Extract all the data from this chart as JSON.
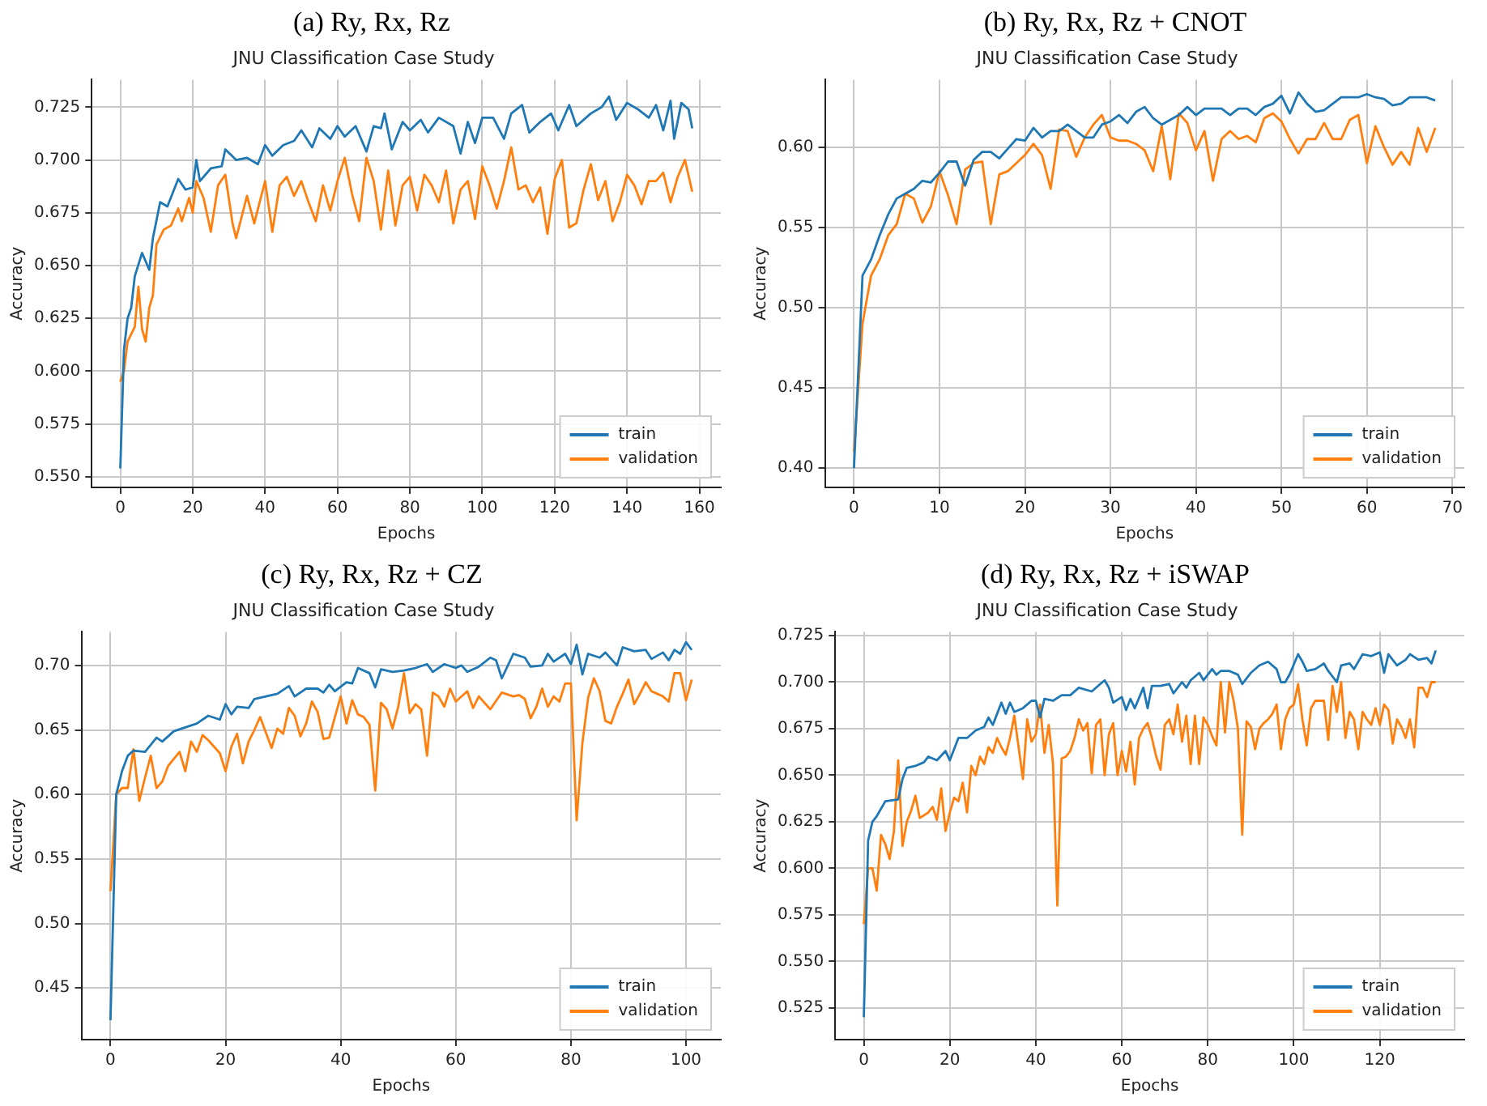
{
  "chart_data": [
    {
      "type": "line",
      "title": "JNU Classification Case Study",
      "annotations": [
        "(a) Ry, Rx, Rz"
      ],
      "xlabel": "Epochs",
      "ylabel": "Accuracy",
      "xlim": [
        -7.9,
        165.9
      ],
      "ylim": [
        0.545,
        0.738
      ],
      "xticks": [
        0,
        20,
        40,
        60,
        80,
        100,
        120,
        140,
        160
      ],
      "yticks": [
        {
          "value": 0.55,
          "label": "0.550"
        },
        {
          "value": 0.575,
          "label": "0.575"
        },
        {
          "value": 0.6,
          "label": "0.600"
        },
        {
          "value": 0.625,
          "label": "0.625"
        },
        {
          "value": 0.65,
          "label": "0.650"
        },
        {
          "value": 0.675,
          "label": "0.675"
        },
        {
          "value": 0.7,
          "label": "0.700"
        },
        {
          "value": 0.725,
          "label": "0.725"
        }
      ],
      "grid": true,
      "legend": "bottom right",
      "line_style": "solid",
      "series": [
        {
          "name": "train",
          "color": "#1f77b4",
          "x": [
            0,
            1,
            2,
            3,
            4,
            6,
            8,
            9,
            11,
            13,
            16,
            18,
            20,
            21,
            22,
            25,
            28,
            29,
            32,
            35,
            38,
            40,
            42,
            45,
            48,
            50,
            53,
            55,
            58,
            60,
            62,
            65,
            68,
            70,
            72,
            73,
            75,
            78,
            80,
            83,
            85,
            88,
            92,
            94,
            96,
            98,
            100,
            103,
            106,
            108,
            111,
            113,
            116,
            119,
            121,
            124,
            126,
            130,
            133,
            135,
            137,
            140,
            143,
            146,
            148,
            150,
            152,
            153,
            155,
            157,
            158
          ],
          "values": [
            0.554,
            0.61,
            0.625,
            0.63,
            0.645,
            0.656,
            0.648,
            0.663,
            0.68,
            0.678,
            0.691,
            0.686,
            0.687,
            0.7,
            0.69,
            0.696,
            0.697,
            0.705,
            0.7,
            0.701,
            0.698,
            0.707,
            0.702,
            0.707,
            0.709,
            0.714,
            0.706,
            0.715,
            0.71,
            0.716,
            0.711,
            0.716,
            0.704,
            0.716,
            0.715,
            0.722,
            0.705,
            0.718,
            0.714,
            0.719,
            0.713,
            0.72,
            0.716,
            0.703,
            0.718,
            0.708,
            0.72,
            0.72,
            0.71,
            0.722,
            0.726,
            0.713,
            0.718,
            0.722,
            0.714,
            0.726,
            0.716,
            0.722,
            0.725,
            0.73,
            0.719,
            0.727,
            0.724,
            0.72,
            0.726,
            0.714,
            0.728,
            0.71,
            0.727,
            0.724,
            0.715
          ]
        },
        {
          "name": "validation",
          "color": "#ff7f0e",
          "x": [
            0,
            1,
            2,
            4,
            5,
            6,
            7,
            8,
            9,
            10,
            12,
            14,
            16,
            17,
            19,
            20,
            21,
            23,
            25,
            27,
            29,
            31,
            32,
            35,
            37,
            40,
            42,
            44,
            46,
            48,
            50,
            52,
            54,
            56,
            58,
            60,
            62,
            64,
            66,
            68,
            70,
            72,
            74,
            76,
            78,
            80,
            82,
            84,
            86,
            88,
            90,
            92,
            94,
            96,
            98,
            100,
            102,
            104,
            106,
            108,
            110,
            112,
            114,
            116,
            118,
            120,
            122,
            124,
            126,
            128,
            130,
            132,
            134,
            136,
            138,
            140,
            142,
            144,
            146,
            148,
            150,
            152,
            154,
            156,
            158
          ],
          "values": [
            0.595,
            0.6,
            0.614,
            0.621,
            0.64,
            0.62,
            0.614,
            0.63,
            0.636,
            0.66,
            0.667,
            0.669,
            0.677,
            0.671,
            0.682,
            0.675,
            0.69,
            0.682,
            0.666,
            0.688,
            0.693,
            0.67,
            0.663,
            0.683,
            0.67,
            0.69,
            0.666,
            0.688,
            0.692,
            0.683,
            0.69,
            0.68,
            0.671,
            0.688,
            0.676,
            0.69,
            0.701,
            0.684,
            0.671,
            0.701,
            0.69,
            0.667,
            0.695,
            0.669,
            0.688,
            0.692,
            0.676,
            0.693,
            0.688,
            0.68,
            0.695,
            0.67,
            0.686,
            0.69,
            0.672,
            0.697,
            0.688,
            0.677,
            0.69,
            0.706,
            0.686,
            0.688,
            0.68,
            0.687,
            0.665,
            0.691,
            0.7,
            0.668,
            0.67,
            0.686,
            0.698,
            0.681,
            0.69,
            0.671,
            0.68,
            0.693,
            0.688,
            0.679,
            0.69,
            0.69,
            0.694,
            0.68,
            0.692,
            0.7,
            0.685
          ]
        }
      ]
    },
    {
      "type": "line",
      "title": "JNU Classification Case Study",
      "annotations": [
        "(b) Ry, Rx, Rz + CNOT"
      ],
      "xlabel": "Epochs",
      "ylabel": "Accuracy",
      "xlim": [
        -3.4,
        71.4
      ],
      "ylim": [
        0.388,
        0.642
      ],
      "xticks": [
        0,
        10,
        20,
        30,
        40,
        50,
        60,
        70
      ],
      "yticks": [
        {
          "value": 0.4,
          "label": "0.40"
        },
        {
          "value": 0.45,
          "label": "0.45"
        },
        {
          "value": 0.5,
          "label": "0.50"
        },
        {
          "value": 0.55,
          "label": "0.55"
        },
        {
          "value": 0.6,
          "label": "0.60"
        }
      ],
      "grid": true,
      "legend": "bottom right",
      "line_style": "solid",
      "series": [
        {
          "name": "train",
          "color": "#1f77b4",
          "x": [
            0,
            1,
            2,
            3,
            4,
            5,
            6,
            7,
            8,
            9,
            10,
            11,
            12,
            13,
            14,
            15,
            16,
            17,
            18,
            19,
            20,
            21,
            22,
            23,
            24,
            25,
            26,
            27,
            28,
            29,
            30,
            31,
            32,
            33,
            34,
            35,
            36,
            37,
            38,
            39,
            40,
            41,
            42,
            43,
            44,
            45,
            46,
            47,
            48,
            49,
            50,
            51,
            52,
            53,
            54,
            55,
            56,
            57,
            58,
            59,
            60,
            61,
            62,
            63,
            64,
            65,
            66,
            67,
            68
          ],
          "values": [
            0.4,
            0.52,
            0.53,
            0.545,
            0.558,
            0.568,
            0.571,
            0.574,
            0.579,
            0.578,
            0.584,
            0.591,
            0.591,
            0.576,
            0.592,
            0.597,
            0.597,
            0.593,
            0.599,
            0.605,
            0.604,
            0.612,
            0.606,
            0.61,
            0.61,
            0.614,
            0.61,
            0.606,
            0.606,
            0.614,
            0.616,
            0.62,
            0.615,
            0.622,
            0.625,
            0.618,
            0.614,
            0.617,
            0.62,
            0.625,
            0.62,
            0.624,
            0.624,
            0.624,
            0.62,
            0.624,
            0.624,
            0.62,
            0.625,
            0.627,
            0.632,
            0.621,
            0.634,
            0.627,
            0.622,
            0.623,
            0.627,
            0.631,
            0.631,
            0.631,
            0.633,
            0.631,
            0.63,
            0.626,
            0.627,
            0.631,
            0.631,
            0.631,
            0.629
          ]
        },
        {
          "name": "validation",
          "color": "#ff7f0e",
          "x": [
            0,
            1,
            2,
            3,
            4,
            5,
            6,
            7,
            8,
            9,
            10,
            11,
            12,
            13,
            14,
            15,
            16,
            17,
            18,
            19,
            20,
            21,
            22,
            23,
            24,
            25,
            26,
            27,
            28,
            29,
            30,
            31,
            32,
            33,
            34,
            35,
            36,
            37,
            38,
            39,
            40,
            41,
            42,
            43,
            44,
            45,
            46,
            47,
            48,
            49,
            50,
            51,
            52,
            53,
            54,
            55,
            56,
            57,
            58,
            59,
            60,
            61,
            62,
            63,
            64,
            65,
            66,
            67,
            68
          ],
          "values": [
            0.41,
            0.49,
            0.52,
            0.53,
            0.545,
            0.552,
            0.571,
            0.568,
            0.553,
            0.563,
            0.585,
            0.57,
            0.552,
            0.586,
            0.59,
            0.591,
            0.552,
            0.583,
            0.585,
            0.59,
            0.595,
            0.602,
            0.595,
            0.574,
            0.611,
            0.61,
            0.594,
            0.606,
            0.614,
            0.62,
            0.606,
            0.604,
            0.604,
            0.602,
            0.598,
            0.585,
            0.613,
            0.58,
            0.621,
            0.615,
            0.598,
            0.61,
            0.579,
            0.605,
            0.61,
            0.605,
            0.607,
            0.603,
            0.618,
            0.621,
            0.616,
            0.605,
            0.596,
            0.605,
            0.605,
            0.615,
            0.605,
            0.605,
            0.617,
            0.62,
            0.59,
            0.613,
            0.6,
            0.589,
            0.597,
            0.589,
            0.612,
            0.597,
            0.612
          ]
        }
      ]
    },
    {
      "type": "line",
      "title": "JNU Classification Case Study",
      "annotations": [
        "(c) Ry, Rx, Rz + CZ"
      ],
      "xlabel": "Epochs",
      "ylabel": "Accuracy",
      "xlim": [
        -5.05,
        106.05
      ],
      "ylim": [
        0.41,
        0.726
      ],
      "xticks": [
        0,
        20,
        40,
        60,
        80,
        100
      ],
      "yticks": [
        {
          "value": 0.45,
          "label": "0.45"
        },
        {
          "value": 0.5,
          "label": "0.50"
        },
        {
          "value": 0.55,
          "label": "0.55"
        },
        {
          "value": 0.6,
          "label": "0.60"
        },
        {
          "value": 0.65,
          "label": "0.65"
        },
        {
          "value": 0.7,
          "label": "0.70"
        }
      ],
      "grid": true,
      "legend": "bottom right",
      "line_style": "solid",
      "series": [
        {
          "name": "train",
          "color": "#1f77b4",
          "x": [
            0,
            1,
            2,
            3,
            4,
            6,
            8,
            9,
            11,
            13,
            15,
            17,
            19,
            20,
            21,
            22,
            24,
            25,
            27,
            29,
            31,
            32,
            34,
            36,
            37,
            38,
            39,
            41,
            42,
            43,
            45,
            46,
            47,
            49,
            51,
            53,
            55,
            56,
            58,
            60,
            61,
            62,
            64,
            66,
            67,
            68,
            70,
            72,
            73,
            75,
            76,
            77,
            79,
            80,
            81,
            82,
            83,
            85,
            86,
            88,
            89,
            91,
            93,
            94,
            96,
            97,
            98,
            99,
            100,
            101
          ],
          "values": [
            0.425,
            0.6,
            0.618,
            0.63,
            0.634,
            0.633,
            0.644,
            0.641,
            0.649,
            0.652,
            0.655,
            0.661,
            0.658,
            0.67,
            0.662,
            0.668,
            0.667,
            0.674,
            0.676,
            0.678,
            0.684,
            0.676,
            0.682,
            0.682,
            0.679,
            0.685,
            0.68,
            0.687,
            0.686,
            0.698,
            0.694,
            0.683,
            0.697,
            0.695,
            0.696,
            0.698,
            0.701,
            0.695,
            0.701,
            0.698,
            0.7,
            0.695,
            0.699,
            0.706,
            0.704,
            0.69,
            0.709,
            0.706,
            0.699,
            0.7,
            0.709,
            0.703,
            0.709,
            0.701,
            0.716,
            0.693,
            0.709,
            0.706,
            0.71,
            0.7,
            0.714,
            0.711,
            0.712,
            0.705,
            0.71,
            0.704,
            0.712,
            0.709,
            0.718,
            0.712
          ]
        },
        {
          "name": "validation",
          "color": "#ff7f0e",
          "x": [
            0,
            1,
            2,
            3,
            4,
            5,
            6,
            7,
            8,
            9,
            10,
            12,
            13,
            14,
            15,
            16,
            17,
            18,
            19,
            20,
            21,
            22,
            23,
            24,
            25,
            26,
            27,
            28,
            29,
            30,
            31,
            32,
            33,
            34,
            35,
            36,
            37,
            38,
            39,
            40,
            41,
            42,
            43,
            44,
            45,
            46,
            47,
            48,
            49,
            50,
            51,
            52,
            53,
            54,
            55,
            56,
            57,
            58,
            59,
            60,
            62,
            63,
            64,
            66,
            68,
            70,
            71,
            72,
            73,
            74,
            75,
            76,
            77,
            78,
            79,
            80,
            81,
            82,
            83,
            84,
            85,
            86,
            87,
            88,
            89,
            90,
            91,
            92,
            93,
            94,
            95,
            96,
            97,
            98,
            99,
            100,
            101
          ],
          "values": [
            0.525,
            0.6,
            0.605,
            0.605,
            0.635,
            0.595,
            0.613,
            0.63,
            0.605,
            0.61,
            0.622,
            0.633,
            0.618,
            0.641,
            0.633,
            0.646,
            0.642,
            0.637,
            0.632,
            0.618,
            0.637,
            0.647,
            0.624,
            0.641,
            0.65,
            0.66,
            0.648,
            0.636,
            0.651,
            0.647,
            0.667,
            0.661,
            0.645,
            0.655,
            0.672,
            0.664,
            0.643,
            0.644,
            0.66,
            0.676,
            0.655,
            0.673,
            0.662,
            0.66,
            0.654,
            0.603,
            0.671,
            0.666,
            0.651,
            0.668,
            0.694,
            0.663,
            0.67,
            0.666,
            0.63,
            0.679,
            0.676,
            0.668,
            0.682,
            0.672,
            0.68,
            0.667,
            0.676,
            0.666,
            0.679,
            0.676,
            0.677,
            0.674,
            0.659,
            0.668,
            0.682,
            0.668,
            0.676,
            0.672,
            0.686,
            0.686,
            0.58,
            0.64,
            0.675,
            0.69,
            0.68,
            0.657,
            0.655,
            0.668,
            0.678,
            0.689,
            0.67,
            0.678,
            0.687,
            0.68,
            0.678,
            0.676,
            0.672,
            0.694,
            0.694,
            0.673,
            0.689
          ]
        }
      ]
    },
    {
      "type": "line",
      "title": "JNU Classification Case Study",
      "annotations": [
        "(d) Ry, Rx, Rz + iSWAP"
      ],
      "xlabel": "Epochs",
      "ylabel": "Accuracy",
      "xlim": [
        -6.65,
        139.65
      ],
      "ylim": [
        0.508,
        0.727
      ],
      "xticks": [
        0,
        20,
        40,
        60,
        80,
        100,
        120
      ],
      "yticks": [
        {
          "value": 0.525,
          "label": "0.525"
        },
        {
          "value": 0.55,
          "label": "0.550"
        },
        {
          "value": 0.575,
          "label": "0.575"
        },
        {
          "value": 0.6,
          "label": "0.600"
        },
        {
          "value": 0.625,
          "label": "0.625"
        },
        {
          "value": 0.65,
          "label": "0.650"
        },
        {
          "value": 0.675,
          "label": "0.675"
        },
        {
          "value": 0.7,
          "label": "0.700"
        },
        {
          "value": 0.725,
          "label": "0.725"
        }
      ],
      "grid": true,
      "legend": "bottom right",
      "line_style": "solid",
      "series": [
        {
          "name": "train",
          "color": "#1f77b4",
          "x": [
            0,
            1,
            2,
            3,
            5,
            8,
            9,
            10,
            12,
            14,
            15,
            17,
            19,
            20,
            22,
            24,
            26,
            28,
            29,
            30,
            32,
            33,
            34,
            35,
            37,
            39,
            40,
            41,
            42,
            44,
            46,
            48,
            50,
            53,
            55,
            56,
            57,
            58,
            60,
            61,
            62,
            63,
            65,
            66,
            67,
            69,
            71,
            72,
            74,
            75,
            76,
            78,
            79,
            81,
            82,
            83,
            85,
            87,
            88,
            90,
            92,
            94,
            96,
            97,
            98,
            99,
            101,
            102,
            103,
            105,
            107,
            108,
            110,
            111,
            113,
            114,
            116,
            118,
            120,
            121,
            122,
            124,
            126,
            127,
            129,
            131,
            132,
            133
          ],
          "values": [
            0.52,
            0.615,
            0.625,
            0.628,
            0.636,
            0.637,
            0.648,
            0.654,
            0.655,
            0.657,
            0.66,
            0.658,
            0.663,
            0.658,
            0.67,
            0.67,
            0.674,
            0.676,
            0.681,
            0.677,
            0.689,
            0.683,
            0.689,
            0.684,
            0.686,
            0.69,
            0.69,
            0.681,
            0.691,
            0.69,
            0.693,
            0.693,
            0.697,
            0.695,
            0.699,
            0.701,
            0.697,
            0.689,
            0.692,
            0.685,
            0.691,
            0.686,
            0.697,
            0.686,
            0.698,
            0.698,
            0.699,
            0.694,
            0.7,
            0.697,
            0.701,
            0.705,
            0.701,
            0.707,
            0.704,
            0.706,
            0.706,
            0.704,
            0.699,
            0.705,
            0.709,
            0.711,
            0.707,
            0.7,
            0.7,
            0.704,
            0.715,
            0.711,
            0.706,
            0.707,
            0.71,
            0.706,
            0.7,
            0.709,
            0.71,
            0.707,
            0.715,
            0.714,
            0.716,
            0.705,
            0.715,
            0.709,
            0.712,
            0.715,
            0.712,
            0.713,
            0.71,
            0.717
          ]
        },
        {
          "name": "validation",
          "color": "#ff7f0e",
          "x": [
            0,
            1,
            2,
            3,
            4,
            5,
            6,
            7,
            8,
            9,
            10,
            11,
            12,
            13,
            15,
            16,
            17,
            18,
            19,
            20,
            21,
            22,
            23,
            24,
            25,
            26,
            27,
            28,
            29,
            30,
            31,
            32,
            33,
            34,
            35,
            36,
            37,
            38,
            39,
            40,
            41,
            42,
            43,
            44,
            45,
            46,
            47,
            48,
            49,
            50,
            51,
            52,
            53,
            54,
            55,
            56,
            57,
            58,
            59,
            60,
            61,
            62,
            63,
            64,
            65,
            66,
            67,
            68,
            69,
            70,
            71,
            72,
            73,
            74,
            75,
            76,
            77,
            78,
            79,
            80,
            81,
            82,
            83,
            84,
            85,
            86,
            87,
            88,
            89,
            90,
            91,
            92,
            93,
            94,
            95,
            96,
            97,
            98,
            99,
            100,
            101,
            102,
            103,
            104,
            105,
            106,
            107,
            108,
            109,
            110,
            111,
            112,
            113,
            114,
            115,
            116,
            117,
            118,
            119,
            120,
            121,
            122,
            123,
            124,
            125,
            126,
            127,
            128,
            129,
            130,
            131,
            132,
            133
          ],
          "values": [
            0.57,
            0.6,
            0.6,
            0.588,
            0.618,
            0.613,
            0.605,
            0.62,
            0.658,
            0.612,
            0.625,
            0.631,
            0.639,
            0.627,
            0.63,
            0.633,
            0.626,
            0.643,
            0.62,
            0.63,
            0.638,
            0.636,
            0.646,
            0.63,
            0.655,
            0.65,
            0.66,
            0.656,
            0.665,
            0.662,
            0.67,
            0.665,
            0.661,
            0.67,
            0.682,
            0.665,
            0.648,
            0.68,
            0.668,
            0.672,
            0.688,
            0.662,
            0.677,
            0.656,
            0.58,
            0.659,
            0.66,
            0.663,
            0.67,
            0.68,
            0.674,
            0.678,
            0.651,
            0.677,
            0.68,
            0.65,
            0.672,
            0.678,
            0.65,
            0.663,
            0.652,
            0.668,
            0.645,
            0.67,
            0.675,
            0.678,
            0.67,
            0.66,
            0.653,
            0.677,
            0.68,
            0.672,
            0.688,
            0.668,
            0.682,
            0.656,
            0.682,
            0.656,
            0.681,
            0.677,
            0.671,
            0.666,
            0.7,
            0.673,
            0.7,
            0.69,
            0.675,
            0.618,
            0.679,
            0.676,
            0.664,
            0.675,
            0.678,
            0.68,
            0.683,
            0.688,
            0.664,
            0.68,
            0.686,
            0.688,
            0.699,
            0.68,
            0.666,
            0.686,
            0.69,
            0.69,
            0.69,
            0.669,
            0.698,
            0.684,
            0.7,
            0.67,
            0.684,
            0.68,
            0.664,
            0.684,
            0.68,
            0.677,
            0.686,
            0.677,
            0.688,
            0.685,
            0.667,
            0.68,
            0.676,
            0.67,
            0.68,
            0.665,
            0.697,
            0.697,
            0.692,
            0.7,
            0.7
          ]
        }
      ]
    }
  ]
}
